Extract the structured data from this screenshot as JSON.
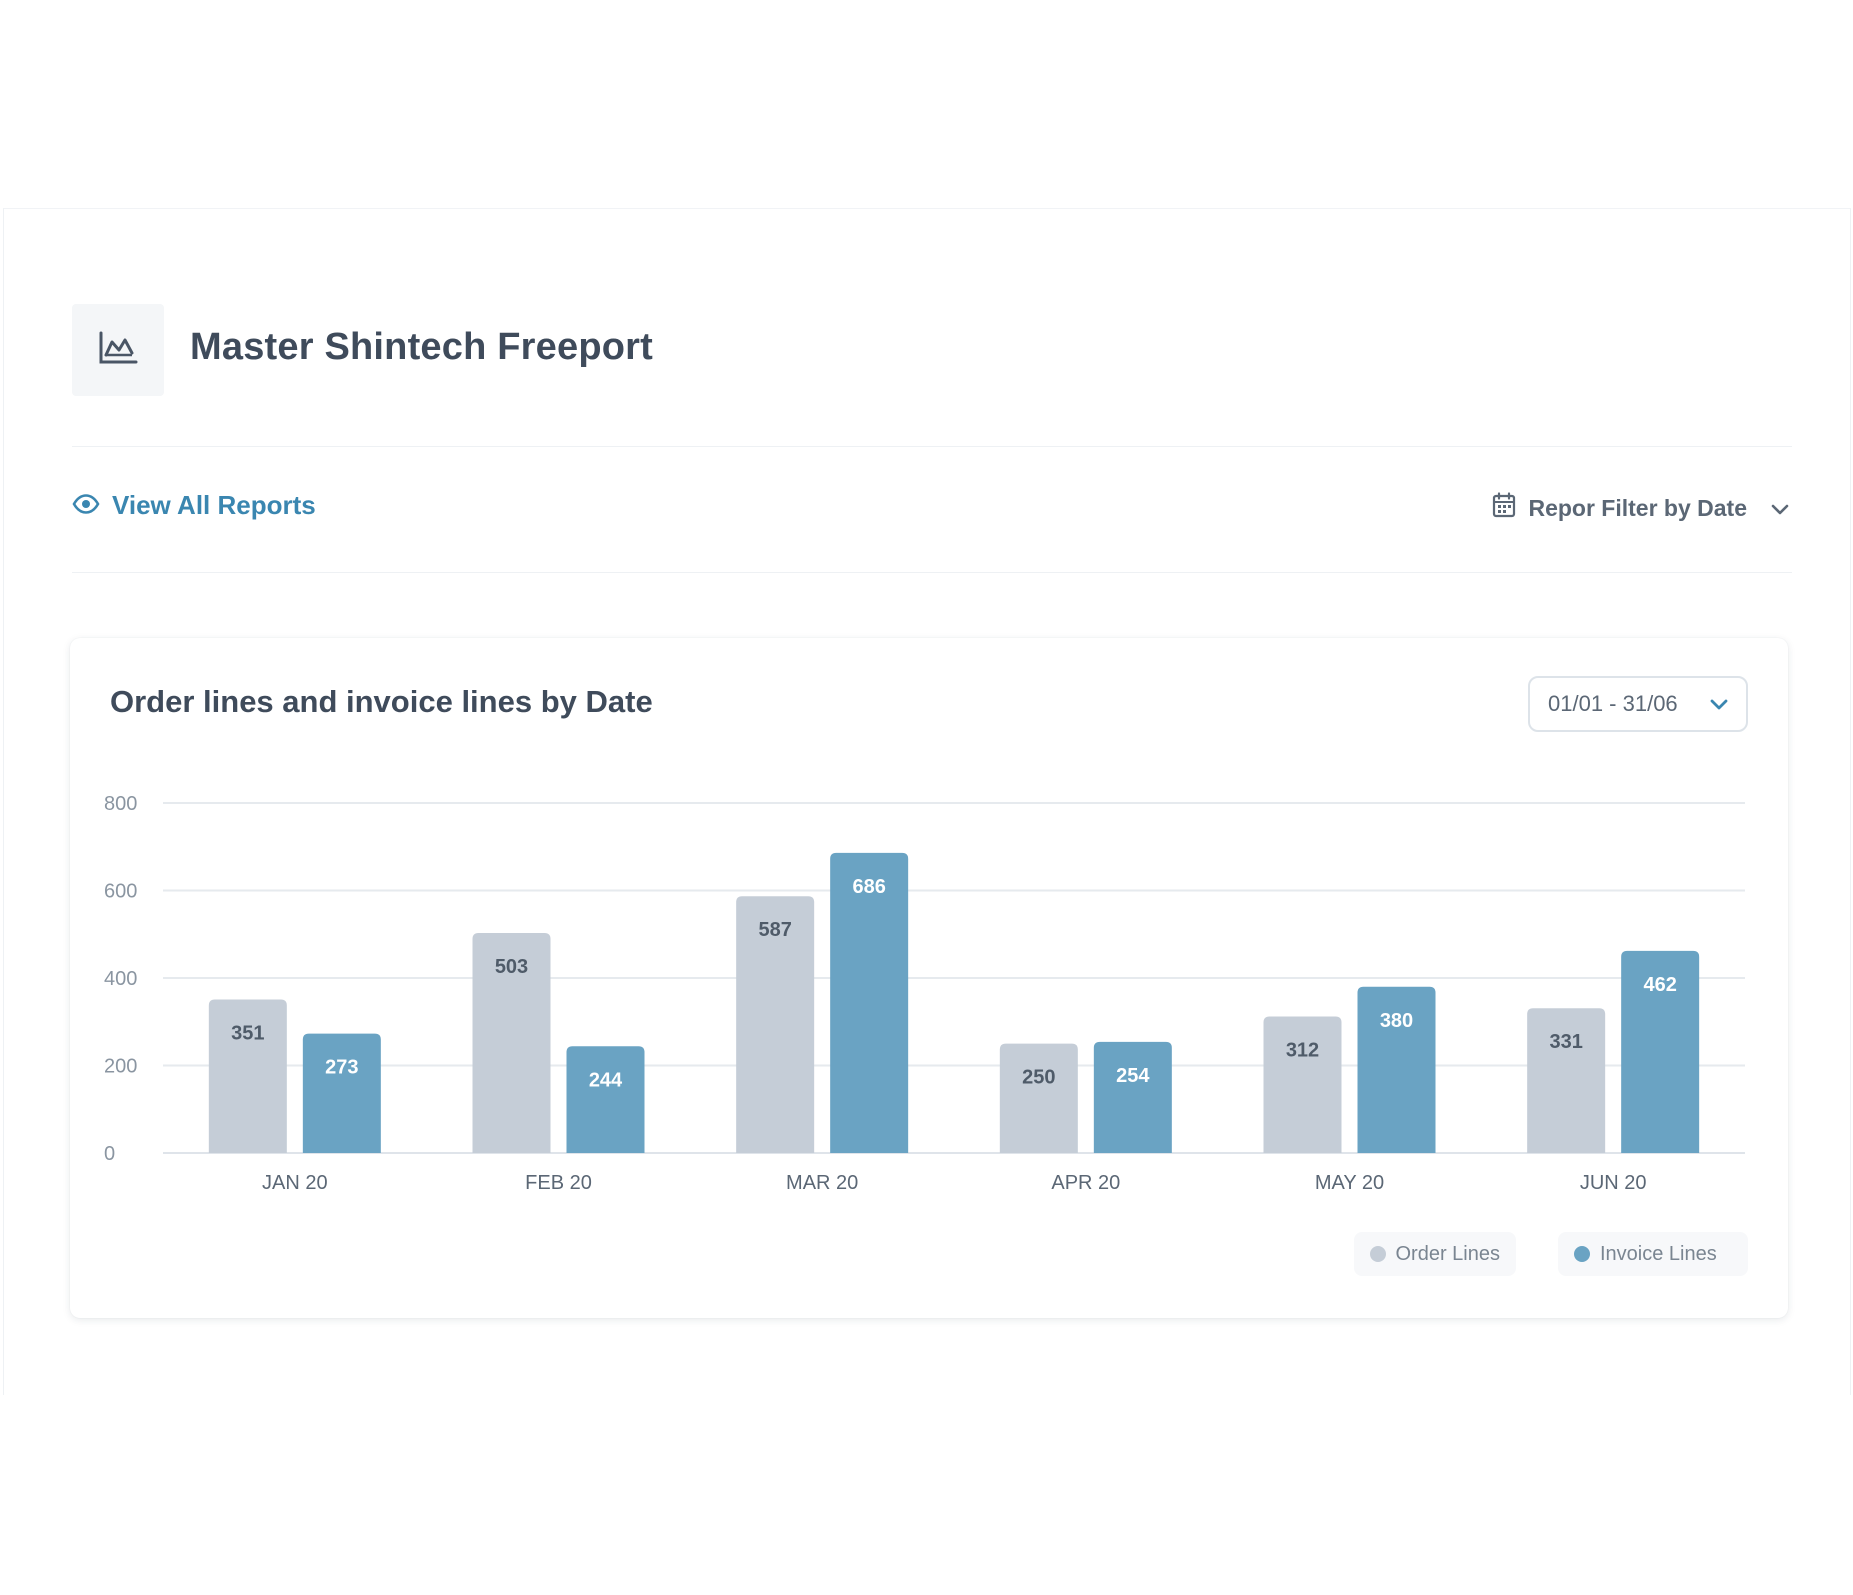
{
  "header": {
    "title": "Master Shintech Freeport",
    "icon": "area-chart-icon"
  },
  "toolbar": {
    "view_all_label": "View All Reports",
    "view_icon": "eye-icon",
    "date_filter_label": "Repor Filter by Date",
    "calendar_icon": "calendar-icon"
  },
  "card": {
    "title": "Order lines and invoice lines by Date",
    "range_value": "01/01 - 31/06"
  },
  "colors": {
    "order": "#c5cdd7",
    "invoice": "#6aa3c3",
    "accent": "#3a86b0"
  },
  "chart_data": {
    "type": "bar",
    "title": "Order lines and invoice lines by Date",
    "categories": [
      "JAN 20",
      "FEB 20",
      "MAR 20",
      "APR 20",
      "MAY 20",
      "JUN 20"
    ],
    "series": [
      {
        "name": "Order Lines",
        "values": [
          351,
          503,
          587,
          250,
          312,
          331
        ]
      },
      {
        "name": "Invoice Lines",
        "values": [
          273,
          244,
          686,
          254,
          380,
          462
        ]
      }
    ],
    "yticks": [
      "0",
      "200",
      "400",
      "600",
      "800"
    ],
    "ylim": [
      0,
      800
    ],
    "grid": true,
    "legend": "bottom-right"
  }
}
